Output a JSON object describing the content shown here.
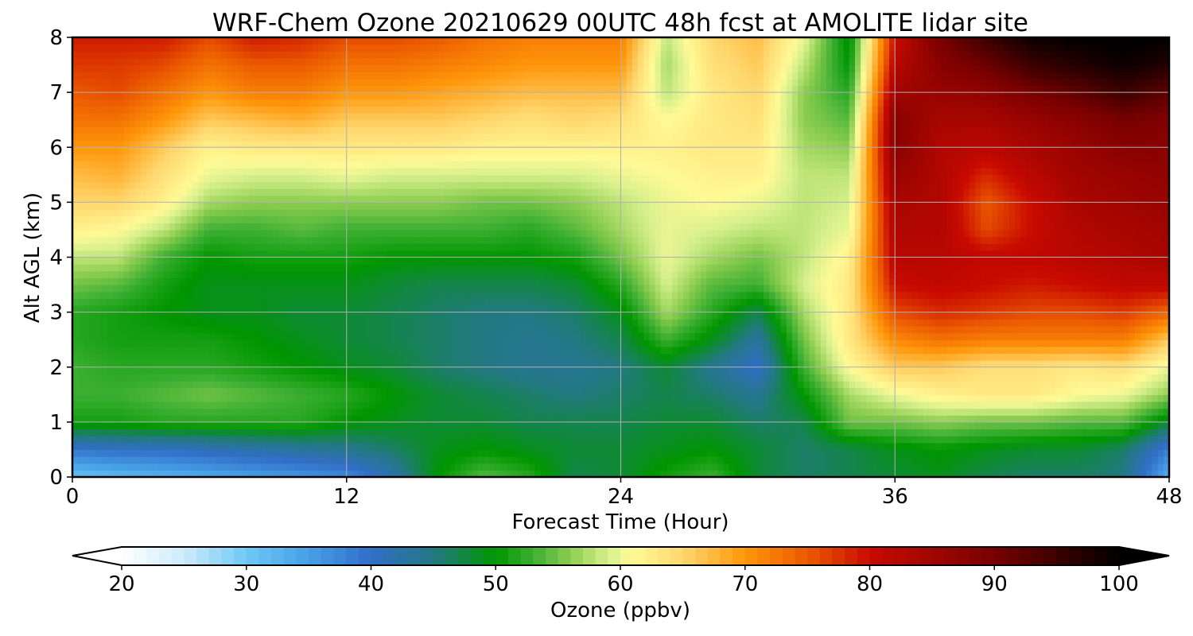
{
  "chart_data": {
    "type": "heatmap",
    "title": "WRF-Chem Ozone  20210629 00UTC 48h fcst at AMOLITE lidar site",
    "xlabel": "Forecast Time (Hour)",
    "ylabel": "Alt AGL (km)",
    "xlim": [
      0,
      48
    ],
    "ylim": [
      0,
      8
    ],
    "x_ticks": [
      0,
      12,
      24,
      36,
      48
    ],
    "y_ticks": [
      0,
      1,
      2,
      3,
      4,
      5,
      6,
      7,
      8
    ],
    "grid": true,
    "colorbar": {
      "label": "Ozone  (ppbv)",
      "orientation": "horizontal",
      "placement": "bottom",
      "extend": "both",
      "range": [
        20,
        100
      ],
      "ticks": [
        20,
        30,
        40,
        50,
        60,
        70,
        80,
        90,
        100
      ]
    },
    "x": [
      0,
      2,
      4,
      6,
      8,
      10,
      12,
      14,
      16,
      18,
      20,
      22,
      24,
      26,
      28,
      30,
      32,
      34,
      36,
      38,
      40,
      42,
      44,
      46,
      48
    ],
    "y": [
      0,
      0.5,
      1,
      1.5,
      2,
      2.5,
      3,
      3.5,
      4,
      4.5,
      5,
      5.5,
      6,
      6.5,
      7,
      7.5,
      8
    ],
    "z": [
      [
        31,
        32,
        33,
        34,
        35,
        36,
        37,
        42,
        50,
        54,
        52,
        47,
        48,
        51,
        53,
        48,
        46,
        47,
        48,
        49,
        47,
        46,
        46,
        45,
        33
      ],
      [
        39,
        40,
        40,
        41,
        42,
        43,
        44,
        46,
        49,
        50,
        49,
        48,
        48,
        49,
        50,
        48,
        46,
        47,
        49,
        50,
        49,
        48,
        48,
        46,
        38
      ],
      [
        51,
        51,
        52,
        52,
        52,
        52,
        50,
        49,
        48,
        48,
        47,
        47,
        47,
        48,
        48,
        46,
        47,
        55,
        55,
        56,
        55,
        55,
        54,
        54,
        48
      ],
      [
        53,
        53,
        54,
        55,
        54,
        53,
        52,
        50,
        48,
        47,
        46,
        45,
        46,
        47,
        46,
        44,
        50,
        57,
        60,
        62,
        63,
        63,
        61,
        60,
        56
      ],
      [
        53,
        52,
        52,
        52,
        51,
        50,
        49,
        48,
        46,
        45,
        44,
        44,
        45,
        48,
        44,
        40,
        53,
        61,
        66,
        66,
        64,
        64,
        63,
        64,
        60
      ],
      [
        52,
        51,
        51,
        51,
        50,
        49,
        48,
        47,
        46,
        45,
        44,
        45,
        47,
        53,
        49,
        43,
        55,
        63,
        71,
        73,
        72,
        72,
        72,
        72,
        66
      ],
      [
        52,
        51,
        50,
        49,
        49,
        48,
        48,
        47,
        46,
        45,
        45,
        46,
        49,
        57,
        52,
        47,
        57,
        63,
        76,
        78,
        77,
        76,
        76,
        77,
        74
      ],
      [
        55,
        54,
        51,
        49,
        49,
        49,
        49,
        48,
        47,
        47,
        47,
        48,
        52,
        59,
        54,
        53,
        59,
        63,
        80,
        81,
        80,
        79,
        80,
        81,
        81
      ],
      [
        58,
        58,
        53,
        50,
        51,
        51,
        51,
        50,
        50,
        50,
        50,
        51,
        55,
        60,
        57,
        55,
        58,
        62,
        82,
        82,
        81,
        81,
        82,
        83,
        84
      ],
      [
        62,
        61,
        58,
        53,
        53,
        54,
        53,
        53,
        53,
        53,
        52,
        54,
        57,
        60,
        59,
        58,
        58,
        60,
        83,
        83,
        76,
        80,
        83,
        84,
        85
      ],
      [
        65,
        65,
        62,
        57,
        56,
        56,
        56,
        56,
        56,
        55,
        55,
        56,
        58,
        60,
        61,
        60,
        58,
        59,
        84,
        83,
        75,
        80,
        84,
        85,
        86
      ],
      [
        67,
        68,
        64,
        60,
        59,
        59,
        60,
        59,
        59,
        59,
        59,
        59,
        60,
        61,
        62,
        62,
        58,
        58,
        86,
        83,
        78,
        82,
        85,
        86,
        87
      ],
      [
        70,
        70,
        66,
        62,
        63,
        63,
        63,
        63,
        63,
        62,
        62,
        62,
        62,
        62,
        63,
        63,
        57,
        56,
        88,
        83,
        82,
        84,
        86,
        88,
        88
      ],
      [
        73,
        73,
        70,
        66,
        67,
        68,
        66,
        66,
        66,
        65,
        64,
        65,
        64,
        61,
        63,
        64,
        56,
        54,
        88,
        84,
        84,
        86,
        88,
        90,
        89
      ],
      [
        75,
        76,
        73,
        70,
        72,
        72,
        70,
        70,
        69,
        68,
        67,
        67,
        67,
        58,
        63,
        65,
        56,
        52,
        85,
        86,
        87,
        90,
        92,
        95,
        92
      ],
      [
        77,
        77,
        76,
        73,
        75,
        75,
        73,
        73,
        72,
        71,
        70,
        70,
        70,
        57,
        64,
        66,
        58,
        50,
        82,
        88,
        91,
        95,
        97,
        99,
        97
      ],
      [
        79,
        79,
        79,
        76,
        79,
        78,
        76,
        76,
        75,
        73,
        72,
        72,
        72,
        58,
        65,
        67,
        60,
        49,
        80,
        90,
        95,
        99,
        100,
        100,
        100
      ]
    ]
  }
}
